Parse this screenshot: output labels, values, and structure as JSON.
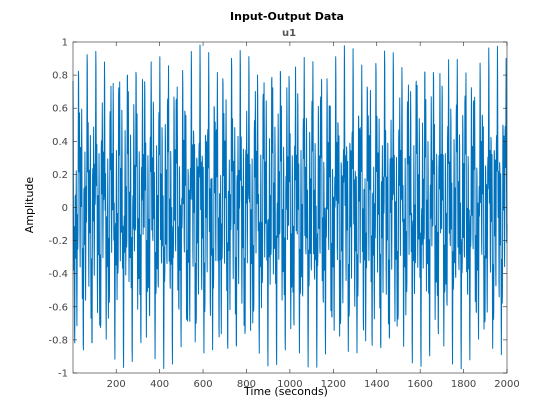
{
  "colors": {
    "series": "#0072BD",
    "axis": "#262626",
    "background": "#ffffff"
  },
  "chart_data": {
    "type": "line",
    "title": "Input-Output Data",
    "subtitle": "u1",
    "xlabel": "Time (seconds)",
    "ylabel": "Amplitude",
    "xlim": [
      1,
      2000
    ],
    "ylim": [
      -1,
      1
    ],
    "x_ticks": [
      200,
      400,
      600,
      800,
      1000,
      1200,
      1400,
      1600,
      1800,
      2000
    ],
    "x_tick_labels": [
      "200",
      "400",
      "600",
      "800",
      "1000",
      "1200",
      "1400",
      "1600",
      "1800",
      "2000"
    ],
    "y_ticks": [
      -1,
      -0.8,
      -0.6,
      -0.4,
      -0.2,
      0,
      0.2,
      0.4,
      0.6,
      0.8,
      1
    ],
    "y_tick_labels": [
      "-1",
      "-0.8",
      "-0.6",
      "-0.4",
      "-0.2",
      "0",
      "0.2",
      "0.4",
      "0.6",
      "0.8",
      "1"
    ],
    "grid": false,
    "box": true,
    "series": [
      {
        "sample_count": 2000,
        "x_start": 1,
        "x_step": 1,
        "components": [
          {
            "amplitude": 0.3333,
            "period": 5.0
          },
          {
            "amplitude": 0.3333,
            "period": 13.3
          },
          {
            "amplitude": 0.3333,
            "period": 37.0
          }
        ]
      }
    ]
  }
}
